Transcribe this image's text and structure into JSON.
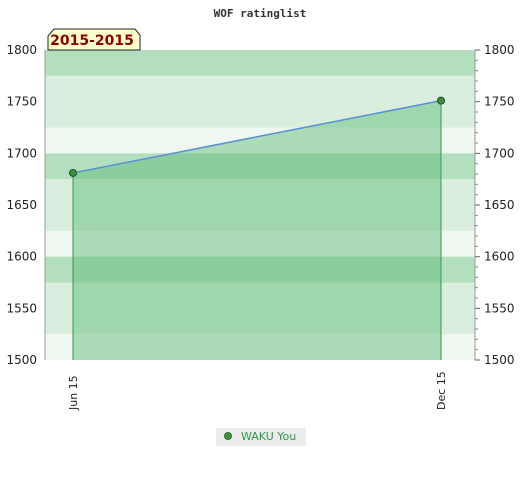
{
  "chart_data": {
    "type": "area",
    "title": "WOF ratinglist",
    "season_label": "2015-2015",
    "x": [
      "Jun 15",
      "Dec 15"
    ],
    "series": [
      {
        "name": "WAKU You",
        "values": [
          1681,
          1751
        ]
      }
    ],
    "ylim": [
      1500,
      1800
    ],
    "yticks": [
      1500,
      1550,
      1600,
      1650,
      1700,
      1750,
      1800
    ],
    "y_axes": "left-and-right",
    "grid": false,
    "legend_position": "bottom-center",
    "colors": {
      "line": "#5a8fd8",
      "area": "#5cb870",
      "point": "#3f8f3f",
      "band_light": "#eef7f0",
      "band_mid": "#d9eedd",
      "band_dark": "#b3dfbf",
      "season_bg": "#ffffcc",
      "legend_text": "#2e9a4a"
    }
  }
}
